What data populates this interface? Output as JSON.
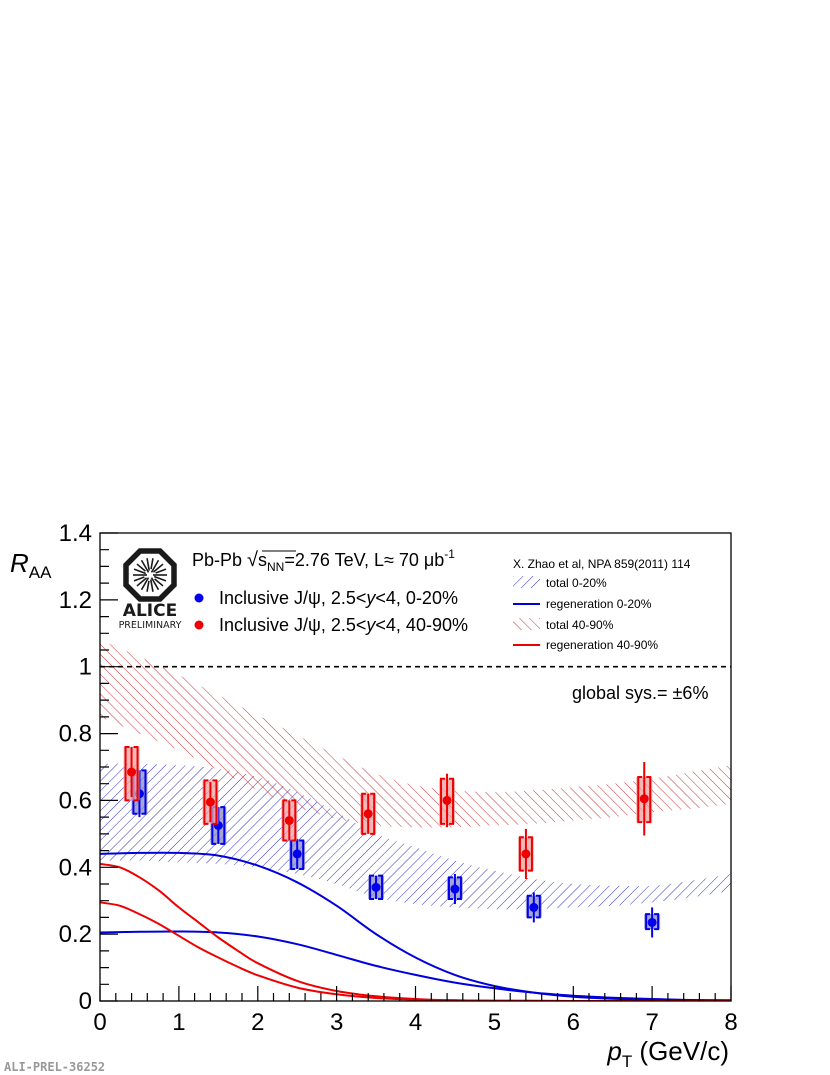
{
  "chart_data": {
    "type": "scatter",
    "xlabel_main": "p",
    "xlabel_sub": "T",
    "xlabel_unit": " (GeV/c)",
    "ylabel_main": "R",
    "ylabel_sub": "AA",
    "xlim": [
      0,
      8
    ],
    "ylim": [
      0,
      1.4
    ],
    "x_ticks": [
      "0",
      "1",
      "2",
      "3",
      "4",
      "5",
      "6",
      "7",
      "8"
    ],
    "y_ticks": [
      "0",
      "0.2",
      "0.4",
      "0.6",
      "0.8",
      "1",
      "1.2",
      "1.4"
    ],
    "reference_line": 1.0,
    "header_text": {
      "system": "Pb-Pb ",
      "sqrt_symbol": "√",
      "s_sym": "s",
      "s_sub": "NN",
      "energy": "=2.76 TeV, L≈ 70 μb",
      "lumi_sup": "-1"
    },
    "series": [
      {
        "name": "Inclusive J/ψ, 2.5<y<4, 0-20%",
        "name_prefix": "Inclusive J/ψ, 2.5<",
        "name_italic": "y",
        "name_suffix": "<4, 0-20%",
        "color": "#0000ee",
        "box_color": "#8a8ac8",
        "points": [
          {
            "x": 0.5,
            "y": 0.62,
            "stat": 0.07,
            "sys_lo": 0.56,
            "sys_hi": 0.69
          },
          {
            "x": 1.5,
            "y": 0.525,
            "stat": 0.055,
            "sys_lo": 0.47,
            "sys_hi": 0.58
          },
          {
            "x": 2.5,
            "y": 0.44,
            "stat": 0.045,
            "sys_lo": 0.395,
            "sys_hi": 0.48
          },
          {
            "x": 3.5,
            "y": 0.34,
            "stat": 0.035,
            "sys_lo": 0.305,
            "sys_hi": 0.375
          },
          {
            "x": 4.5,
            "y": 0.335,
            "stat": 0.045,
            "sys_lo": 0.305,
            "sys_hi": 0.37
          },
          {
            "x": 5.5,
            "y": 0.28,
            "stat": 0.045,
            "sys_lo": 0.25,
            "sys_hi": 0.315
          },
          {
            "x": 7.0,
            "y": 0.235,
            "stat": 0.045,
            "sys_lo": 0.215,
            "sys_hi": 0.26
          }
        ]
      },
      {
        "name": "Inclusive J/ψ, 2.5<y<4, 40-90%",
        "name_prefix": "Inclusive J/ψ, 2.5<",
        "name_italic": "y",
        "name_suffix": "<4, 40-90%",
        "color": "#ee0000",
        "box_color": "#f2a0a0",
        "points": [
          {
            "x": 0.4,
            "y": 0.685,
            "stat": 0.075,
            "sys_lo": 0.6,
            "sys_hi": 0.76
          },
          {
            "x": 1.4,
            "y": 0.595,
            "stat": 0.06,
            "sys_lo": 0.53,
            "sys_hi": 0.66
          },
          {
            "x": 2.4,
            "y": 0.54,
            "stat": 0.06,
            "sys_lo": 0.48,
            "sys_hi": 0.6
          },
          {
            "x": 3.4,
            "y": 0.56,
            "stat": 0.06,
            "sys_lo": 0.5,
            "sys_hi": 0.62
          },
          {
            "x": 4.4,
            "y": 0.6,
            "stat": 0.08,
            "sys_lo": 0.53,
            "sys_hi": 0.665
          },
          {
            "x": 5.4,
            "y": 0.44,
            "stat": 0.075,
            "sys_lo": 0.39,
            "sys_hi": 0.49
          },
          {
            "x": 6.9,
            "y": 0.605,
            "stat": 0.11,
            "sys_lo": 0.535,
            "sys_hi": 0.67
          }
        ]
      }
    ],
    "models": {
      "citation": "X. Zhao et al, NPA 859(2011) 114",
      "total_0_20": {
        "name": "total 0-20%",
        "color": "#3333cc",
        "x": [
          0,
          0.5,
          1,
          1.5,
          2,
          2.5,
          3,
          3.5,
          4,
          4.5,
          5,
          5.5,
          6,
          6.5,
          7,
          7.5,
          8
        ],
        "lo": [
          0.42,
          0.42,
          0.415,
          0.41,
          0.4,
          0.38,
          0.35,
          0.31,
          0.29,
          0.28,
          0.275,
          0.275,
          0.28,
          0.285,
          0.295,
          0.31,
          0.33
        ],
        "hi": [
          0.71,
          0.71,
          0.705,
          0.695,
          0.67,
          0.625,
          0.565,
          0.5,
          0.46,
          0.42,
          0.39,
          0.365,
          0.35,
          0.345,
          0.345,
          0.36,
          0.38
        ]
      },
      "total_40_90": {
        "name": "total 40-90%",
        "color": "#cc3333",
        "x": [
          0,
          0.5,
          1,
          1.5,
          2,
          2.5,
          3,
          3.5,
          4,
          4.5,
          5,
          5.5,
          6,
          6.5,
          7,
          7.5,
          8
        ],
        "lo": [
          0.85,
          0.8,
          0.75,
          0.69,
          0.63,
          0.58,
          0.545,
          0.525,
          0.52,
          0.52,
          0.525,
          0.53,
          0.54,
          0.55,
          0.565,
          0.575,
          0.59
        ],
        "hi": [
          1.08,
          1.03,
          0.975,
          0.915,
          0.855,
          0.795,
          0.735,
          0.68,
          0.645,
          0.63,
          0.625,
          0.63,
          0.64,
          0.65,
          0.665,
          0.685,
          0.705
        ]
      },
      "regen_0_20": {
        "name": "regeneration 0-20%",
        "color": "#0000dd",
        "curves": [
          {
            "x": [
              0,
              0.5,
              1,
              1.5,
              2,
              2.5,
              3,
              3.5,
              4,
              4.5,
              5,
              5.5,
              6,
              6.5,
              7,
              7.5,
              8
            ],
            "y": [
              0.44,
              0.443,
              0.443,
              0.435,
              0.405,
              0.355,
              0.285,
              0.2,
              0.13,
              0.078,
              0.045,
              0.025,
              0.013,
              0.007,
              0.004,
              0.002,
              0.001
            ]
          },
          {
            "x": [
              0,
              0.5,
              1,
              1.5,
              2,
              2.5,
              3,
              3.5,
              4,
              4.5,
              5,
              5.5,
              6,
              6.5,
              7,
              7.5,
              8
            ],
            "y": [
              0.205,
              0.207,
              0.208,
              0.205,
              0.193,
              0.17,
              0.138,
              0.105,
              0.078,
              0.055,
              0.038,
              0.025,
              0.016,
              0.01,
              0.006,
              0.003,
              0.002
            ]
          }
        ]
      },
      "regen_40_90": {
        "name": "regeneration 40-90%",
        "color": "#ee0000",
        "curves": [
          {
            "x": [
              0,
              0.25,
              0.5,
              0.75,
              1,
              1.25,
              1.5,
              1.75,
              2,
              2.5,
              3,
              3.5,
              4,
              4.5,
              5,
              6,
              7,
              8
            ],
            "y": [
              0.41,
              0.4,
              0.37,
              0.33,
              0.28,
              0.235,
              0.19,
              0.15,
              0.113,
              0.06,
              0.03,
              0.014,
              0.006,
              0.002,
              0.001,
              0,
              0,
              0
            ]
          },
          {
            "x": [
              0,
              0.25,
              0.5,
              0.75,
              1,
              1.25,
              1.5,
              1.75,
              2,
              2.5,
              3,
              3.5,
              4,
              4.5,
              5,
              6,
              7,
              8
            ],
            "y": [
              0.295,
              0.285,
              0.26,
              0.23,
              0.195,
              0.16,
              0.13,
              0.102,
              0.077,
              0.04,
              0.02,
              0.009,
              0.004,
              0.002,
              0.001,
              0,
              0,
              0
            ]
          }
        ]
      }
    },
    "annotations": {
      "global_sys": "global sys.= ±6%"
    }
  },
  "logo": {
    "name": "ALICE",
    "tagline": "PRELIMINARY"
  },
  "figure_id": "ALI-PREL-36252",
  "colors": {
    "frame": "#000000",
    "blue": "#0000ee",
    "red": "#ee0000"
  }
}
